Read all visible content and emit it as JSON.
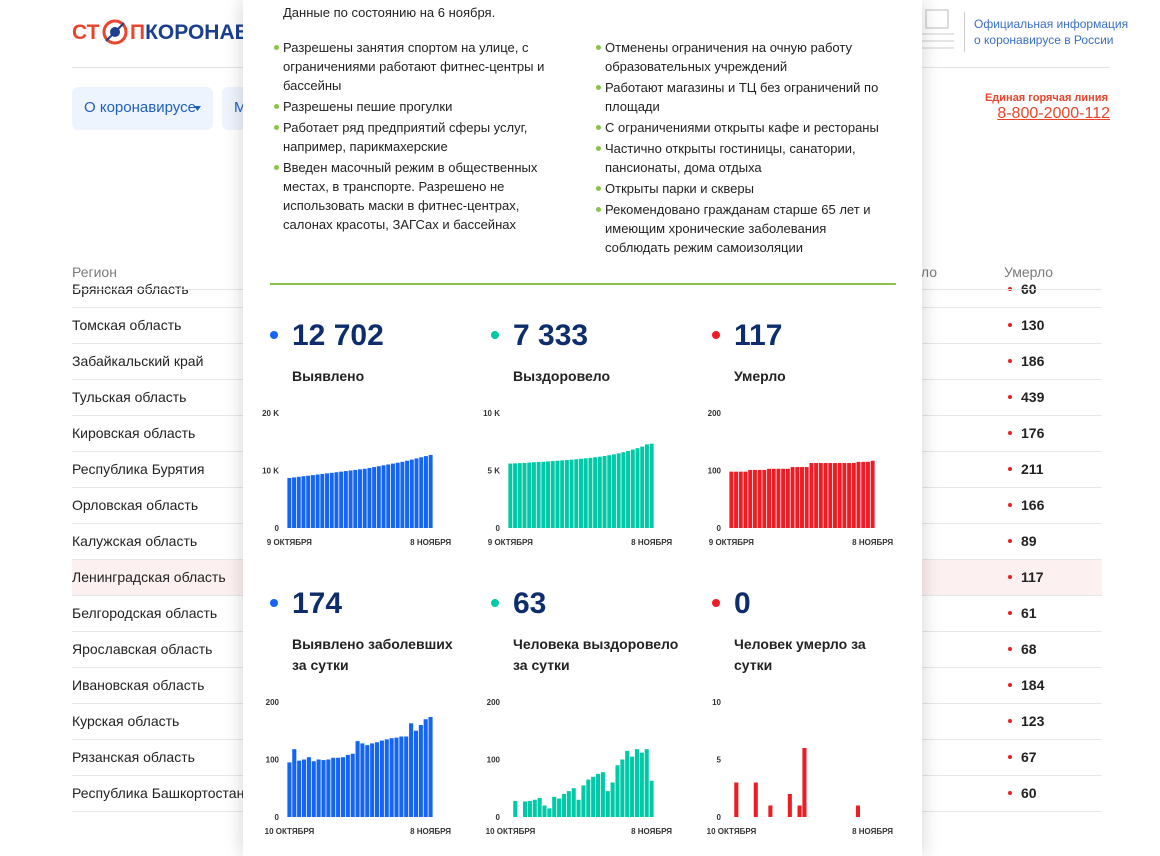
{
  "header": {
    "logo_left": "СТ",
    "logo_mid": "П",
    "logo_right": "КОРОНАВИРУС",
    "official_info": [
      "Официальная информация",
      "о коронавирусе в России"
    ],
    "hotline_label": "Единая горячая линия",
    "hotline_phone": "8-800-2000-112"
  },
  "nav": [
    "О коронавирусе",
    "М"
  ],
  "table": {
    "headers": [
      "Регион",
      "Выздоровело",
      "Умерло"
    ],
    "highlighted_row": 8,
    "rows": [
      [
        "Брянская область",
        60
      ],
      [
        "Томская область",
        130
      ],
      [
        "Забайкальский край",
        186
      ],
      [
        "Тульская область",
        439
      ],
      [
        "Кировская область",
        176
      ],
      [
        "Республика Бурятия",
        211
      ],
      [
        "Орловская область",
        166
      ],
      [
        "Калужская область",
        89
      ],
      [
        "Ленинградская область",
        117
      ],
      [
        "Белгородская область",
        61
      ],
      [
        "Ярославская область",
        68
      ],
      [
        "Ивановская область",
        184
      ],
      [
        "Курская область",
        123
      ],
      [
        "Рязанская область",
        67
      ],
      [
        "Республика Башкортостан",
        60
      ]
    ]
  },
  "modal": {
    "date_note": "Данные по состоянию на 6 ноября.",
    "bullet_color": "#8bc34a",
    "measures_left": [
      "Разрешены занятия спортом на улице, с ограничениями работают фитнес-центры и бассейны",
      "Разрешены пешие прогулки",
      "Работает ряд предприятий сферы услуг, например, парикмахерские",
      "Введен масочный режим в общественных местах, в транспорте. Разрешено не использовать маски в фитнес-центрах, салонах красоты, ЗАГСах и бассейнах"
    ],
    "measures_right": [
      "Отменены ограничения на очную работу образовательных учреждений",
      "Работают магазины и ТЦ без ограничений по площади",
      "С ограничениями открыты кафе и рестораны",
      "Частично открыты гостиницы, санатории, пансионаты, дома отдыха",
      "Открыты парки и скверы",
      "Рекомендовано гражданам старше 65 лет и имеющим хронические заболевания соблюдать режим самоизоляции"
    ]
  },
  "chart_data": [
    {
      "type": "bar",
      "title": "Выявлено",
      "stat": {
        "value": 12702,
        "label": "12 702"
      },
      "color": "#1565f5",
      "categories": [
        "9 ОКТЯБРЯ",
        null,
        null,
        null,
        null,
        null,
        null,
        null,
        null,
        null,
        null,
        null,
        null,
        null,
        null,
        null,
        null,
        null,
        null,
        null,
        null,
        null,
        null,
        null,
        null,
        null,
        null,
        null,
        null,
        null,
        "8 НОЯБРЯ"
      ],
      "values": [
        8700,
        8800,
        8900,
        9000,
        9100,
        9200,
        9300,
        9400,
        9500,
        9600,
        9700,
        9800,
        9900,
        10000,
        10100,
        10200,
        10300,
        10450,
        10600,
        10750,
        10900,
        11050,
        11200,
        11350,
        11500,
        11700,
        11900,
        12100,
        12300,
        12500,
        12702
      ],
      "ylim": [
        0,
        20000
      ],
      "yticks": [
        0,
        {
          "value": 10000,
          "label": "10 K"
        },
        {
          "value": 20000,
          "label": "20 K"
        }
      ]
    },
    {
      "type": "bar",
      "title": "Выздоровело",
      "stat": {
        "value": 7333,
        "label": "7 333"
      },
      "color": "#00c9a7",
      "categories": [
        "9 ОКТЯБРЯ",
        null,
        null,
        null,
        null,
        null,
        null,
        null,
        null,
        null,
        null,
        null,
        null,
        null,
        null,
        null,
        null,
        null,
        null,
        null,
        null,
        null,
        null,
        null,
        null,
        null,
        null,
        null,
        null,
        null,
        "8 НОЯБРЯ"
      ],
      "values": [
        5600,
        5620,
        5640,
        5660,
        5690,
        5720,
        5740,
        5760,
        5790,
        5820,
        5850,
        5880,
        5910,
        5940,
        5980,
        6020,
        6060,
        6100,
        6150,
        6200,
        6260,
        6330,
        6400,
        6490,
        6590,
        6700,
        6820,
        6940,
        7080,
        7270,
        7333
      ],
      "ylim": [
        0,
        10000
      ],
      "yticks": [
        0,
        {
          "value": 5000,
          "label": "5 K"
        },
        {
          "value": 10000,
          "label": "10 K"
        }
      ]
    },
    {
      "type": "bar",
      "title": "Умерло",
      "stat": 117,
      "color": "#ee1c25",
      "categories": [
        "9 ОКТЯБРЯ",
        null,
        null,
        null,
        null,
        null,
        null,
        null,
        null,
        null,
        null,
        null,
        null,
        null,
        null,
        null,
        null,
        null,
        null,
        null,
        null,
        null,
        null,
        null,
        null,
        null,
        null,
        null,
        null,
        null,
        "8 НОЯБРЯ"
      ],
      "values": [
        98,
        98,
        98,
        98,
        101,
        101,
        101,
        101,
        103,
        103,
        103,
        103,
        103,
        106,
        106,
        106,
        106,
        113,
        113,
        113,
        113,
        113,
        113,
        113,
        113,
        113,
        113,
        115,
        115,
        115,
        117
      ],
      "ylim": [
        0,
        200
      ],
      "yticks": [
        0,
        100,
        200
      ]
    },
    {
      "type": "bar",
      "title": "Выявлено заболевших за сутки",
      "stat": 174,
      "color": "#1565f5",
      "categories": [
        "10 ОКТЯБРЯ",
        null,
        null,
        null,
        null,
        null,
        null,
        null,
        null,
        null,
        null,
        null,
        null,
        null,
        null,
        null,
        null,
        null,
        null,
        null,
        null,
        null,
        null,
        null,
        null,
        null,
        null,
        null,
        null,
        "8 НОЯБРЯ"
      ],
      "values": [
        95,
        118,
        98,
        100,
        104,
        97,
        100,
        99,
        100,
        103,
        103,
        104,
        108,
        110,
        132,
        128,
        125,
        128,
        130,
        133,
        135,
        137,
        138,
        140,
        140,
        163,
        150,
        160,
        170,
        174
      ],
      "ylim": [
        0,
        200
      ],
      "yticks": [
        0,
        100,
        200
      ]
    },
    {
      "type": "bar",
      "title": "Человека выздоровело за сутки",
      "stat": 63,
      "color": "#00c9a7",
      "categories": [
        "10 ОКТЯБРЯ",
        null,
        null,
        null,
        null,
        null,
        null,
        null,
        null,
        null,
        null,
        null,
        null,
        null,
        null,
        null,
        null,
        null,
        null,
        null,
        null,
        null,
        null,
        null,
        null,
        null,
        null,
        null,
        null,
        "8 НОЯБРЯ"
      ],
      "values": [
        0,
        28,
        0,
        27,
        28,
        30,
        33,
        20,
        15,
        35,
        32,
        40,
        45,
        50,
        30,
        55,
        65,
        70,
        75,
        78,
        45,
        60,
        90,
        100,
        115,
        105,
        118,
        112,
        118,
        63
      ],
      "ylim": [
        0,
        200
      ],
      "yticks": [
        0,
        100,
        200
      ]
    },
    {
      "type": "bar",
      "title": "Человек умерло за сутки",
      "stat": 0,
      "color": "#ee1c25",
      "categories": [
        "10 ОКТЯБРЯ",
        null,
        null,
        null,
        null,
        null,
        null,
        null,
        null,
        null,
        null,
        null,
        null,
        null,
        null,
        null,
        null,
        null,
        null,
        null,
        null,
        null,
        null,
        null,
        null,
        null,
        null,
        null,
        null,
        "8 НОЯБРЯ"
      ],
      "values": [
        0,
        3,
        0,
        0,
        0,
        3,
        0,
        0,
        1,
        0,
        0,
        0,
        2,
        0,
        1,
        6,
        0,
        0,
        0,
        0,
        0,
        0,
        0,
        0,
        0,
        0,
        1,
        0,
        0,
        0
      ],
      "ylim": [
        0,
        10
      ],
      "yticks": [
        0,
        5,
        10
      ]
    }
  ]
}
